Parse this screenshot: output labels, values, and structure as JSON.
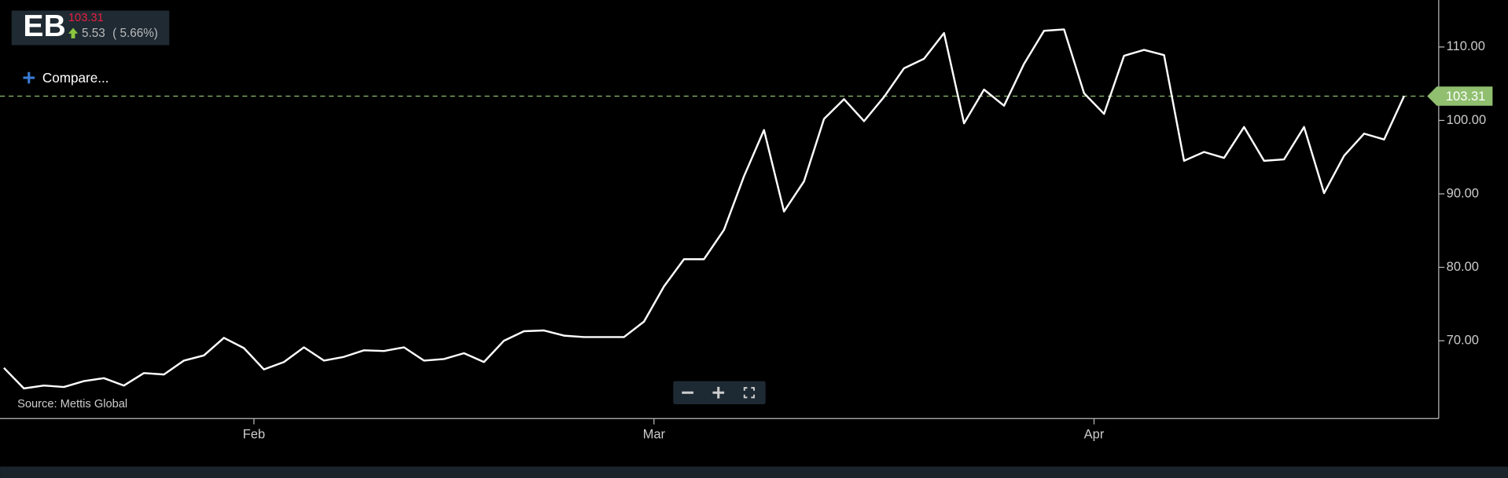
{
  "chart_data": {
    "type": "line",
    "ticker": "EB",
    "change": "5.53",
    "change_pct": "( 5.66%)",
    "compare_label": "Compare...",
    "source": "Source: Mettis Global",
    "color": "#ffffff",
    "categories": [
      null,
      null,
      null,
      null,
      null,
      null,
      null,
      null,
      null,
      null,
      null,
      null,
      null,
      "Feb",
      null,
      null,
      null,
      null,
      null,
      null,
      null,
      null,
      null,
      null,
      null,
      null,
      null,
      null,
      null,
      null,
      null,
      null,
      null,
      "Mar",
      null,
      null,
      null,
      null,
      null,
      null,
      null,
      null,
      null,
      null,
      null,
      null,
      null,
      null,
      null,
      null,
      null,
      null,
      null,
      null,
      null,
      "Apr",
      null,
      null,
      null,
      null,
      null,
      null,
      null,
      null,
      null,
      null,
      null,
      null,
      null,
      null,
      null
    ],
    "values": [
      66.3,
      63.5,
      63.9,
      63.7,
      64.5,
      64.9,
      63.9,
      65.6,
      65.4,
      67.3,
      68.0,
      70.4,
      69.0,
      66.1,
      67.1,
      69.1,
      67.3,
      67.8,
      68.7,
      68.6,
      69.1,
      67.3,
      67.5,
      68.3,
      67.1,
      70.0,
      71.3,
      71.4,
      70.7,
      70.5,
      70.5,
      70.5,
      72.6,
      77.4,
      81.1,
      81.1,
      85.1,
      92.4,
      98.7,
      87.6,
      91.7,
      100.2,
      102.9,
      99.9,
      103.2,
      107.1,
      108.4,
      111.9,
      99.6,
      104.2,
      102.0,
      107.7,
      112.2,
      112.4,
      103.7,
      100.9,
      108.8,
      109.6,
      108.9,
      94.5,
      95.7,
      94.9,
      99.1,
      94.5,
      94.7,
      99.1,
      90.1,
      95.2,
      98.2,
      97.4,
      103.31
    ],
    "ylim": [
      59.4,
      116.4
    ],
    "yticks": [
      {
        "value": 70,
        "label": "70.00"
      },
      {
        "value": 80,
        "label": "80.00"
      },
      {
        "value": 90,
        "label": "90.00"
      },
      {
        "value": 100,
        "label": "100.00"
      },
      {
        "value": 110,
        "label": "110.00"
      }
    ]
  }
}
